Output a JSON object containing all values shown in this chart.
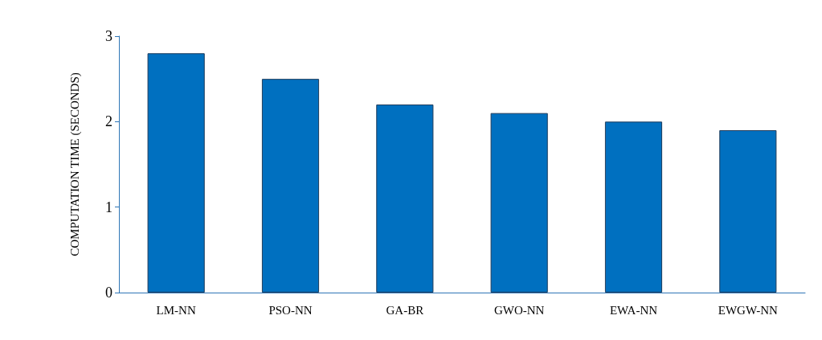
{
  "chart_data": {
    "type": "bar",
    "ylabel": "COMPUTATION TIME (SECONDS)",
    "categories": [
      "LM-NN",
      "PSO-NN",
      "GA-BR",
      "GWO-NN",
      "EWA-NN",
      "EWGW-NN"
    ],
    "values": [
      2.8,
      2.5,
      2.2,
      2.1,
      2.0,
      1.9
    ],
    "color": "#0070c0",
    "ylim": [
      0,
      3
    ],
    "yticks": [
      0,
      1,
      2,
      3
    ],
    "grid": false
  }
}
